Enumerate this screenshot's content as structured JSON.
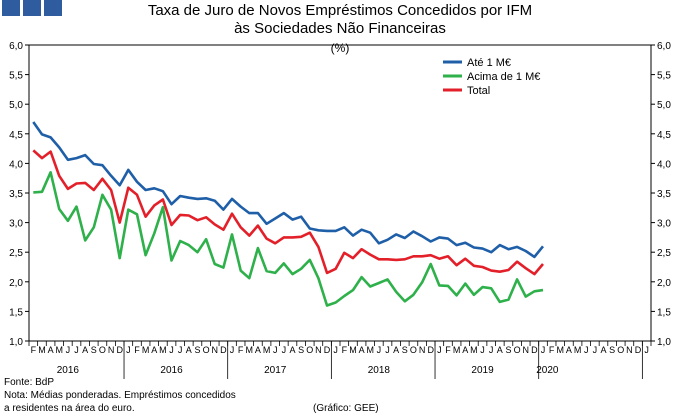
{
  "header": {
    "title_line1": "Taxa de Juro de Novos Empréstimos Concedidos por IFM",
    "title_line2": "às Sociedades Não Financeiras",
    "unit": "(%)"
  },
  "footer": {
    "source": "Fonte: BdP",
    "note_line1": "Nota: Médias ponderadas. Empréstimos concedidos",
    "note_line2": "a residentes na área do euro.",
    "credit": "(Gráfico: GEE)"
  },
  "chart_data": {
    "type": "line",
    "title": "Taxa de Juro de Novos Empréstimos Concedidos por IFM às Sociedades Não Financeiras",
    "ylabel": "(%)",
    "ylim": [
      1.0,
      6.0
    ],
    "yticks": [
      "1,0",
      "1,5",
      "2,0",
      "2,5",
      "3,0",
      "3,5",
      "4,0",
      "4,5",
      "5,0",
      "5,5",
      "6,0"
    ],
    "grid": false,
    "legend_position": "top-right",
    "month_labels": [
      "F",
      "M",
      "A",
      "M",
      "J",
      "J",
      "A",
      "S",
      "O",
      "N",
      "D",
      "J",
      "F",
      "M",
      "A",
      "M",
      "J",
      "J",
      "A",
      "S",
      "O",
      "N",
      "D",
      "J",
      "F",
      "M",
      "A",
      "M",
      "J",
      "J",
      "A",
      "S",
      "O",
      "N",
      "D",
      "J",
      "F",
      "M",
      "A",
      "M",
      "J",
      "J",
      "A",
      "S",
      "O",
      "N",
      "D",
      "J",
      "F",
      "M",
      "A",
      "M",
      "J",
      "J",
      "A",
      "S",
      "O",
      "N",
      "D",
      "J",
      "F",
      "M",
      "A",
      "M",
      "J",
      "J",
      "A",
      "S",
      "O",
      "N",
      "D",
      "J"
    ],
    "year_labels": [
      {
        "label": "2016",
        "index": 4
      },
      {
        "label": "2016",
        "index": 16
      },
      {
        "label": "2017",
        "index": 28
      },
      {
        "label": "2018",
        "index": 40
      },
      {
        "label": "2019",
        "index": 52
      },
      {
        "label": "2020",
        "index": 59
      }
    ],
    "series": [
      {
        "name": "Até 1 M€",
        "color": "#1f5fa8",
        "values": [
          4.7,
          4.49,
          4.44,
          4.27,
          4.06,
          4.09,
          4.14,
          3.99,
          3.97,
          3.79,
          3.63,
          3.89,
          3.69,
          3.55,
          3.58,
          3.53,
          3.31,
          3.45,
          3.42,
          3.4,
          3.41,
          3.37,
          3.22,
          3.4,
          3.27,
          3.16,
          3.16,
          2.98,
          3.07,
          3.16,
          3.05,
          3.1,
          2.9,
          2.87,
          2.86,
          2.86,
          2.92,
          2.78,
          2.88,
          2.83,
          2.65,
          2.71,
          2.8,
          2.74,
          2.85,
          2.77,
          2.68,
          2.75,
          2.73,
          2.62,
          2.66,
          2.58,
          2.56,
          2.5,
          2.62,
          2.55,
          2.59,
          2.52,
          2.42,
          2.6
        ]
      },
      {
        "name": "Acima de 1 M€",
        "color": "#2eb04a",
        "values": [
          3.51,
          3.52,
          3.85,
          3.23,
          3.03,
          3.27,
          2.7,
          2.92,
          3.47,
          3.22,
          2.4,
          3.22,
          3.14,
          2.45,
          2.82,
          3.26,
          2.36,
          2.69,
          2.62,
          2.5,
          2.72,
          2.3,
          2.24,
          2.8,
          2.19,
          2.06,
          2.57,
          2.18,
          2.15,
          2.31,
          2.13,
          2.22,
          2.37,
          2.06,
          1.6,
          1.65,
          1.76,
          1.86,
          2.08,
          1.92,
          1.98,
          2.04,
          1.83,
          1.67,
          1.78,
          1.99,
          2.3,
          1.94,
          1.93,
          1.77,
          1.97,
          1.78,
          1.91,
          1.89,
          1.66,
          1.7,
          2.04,
          1.75,
          1.84,
          1.86
        ]
      },
      {
        "name": "Total",
        "color": "#e3202a",
        "values": [
          4.22,
          4.09,
          4.2,
          3.79,
          3.57,
          3.66,
          3.67,
          3.55,
          3.74,
          3.55,
          3.0,
          3.59,
          3.47,
          3.1,
          3.29,
          3.39,
          2.96,
          3.13,
          3.12,
          3.04,
          3.09,
          2.97,
          2.88,
          3.15,
          2.92,
          2.78,
          2.95,
          2.73,
          2.65,
          2.75,
          2.75,
          2.76,
          2.83,
          2.59,
          2.15,
          2.22,
          2.49,
          2.4,
          2.55,
          2.46,
          2.38,
          2.38,
          2.37,
          2.38,
          2.43,
          2.43,
          2.45,
          2.39,
          2.43,
          2.28,
          2.39,
          2.27,
          2.25,
          2.19,
          2.17,
          2.2,
          2.34,
          2.23,
          2.13,
          2.3
        ]
      }
    ]
  }
}
